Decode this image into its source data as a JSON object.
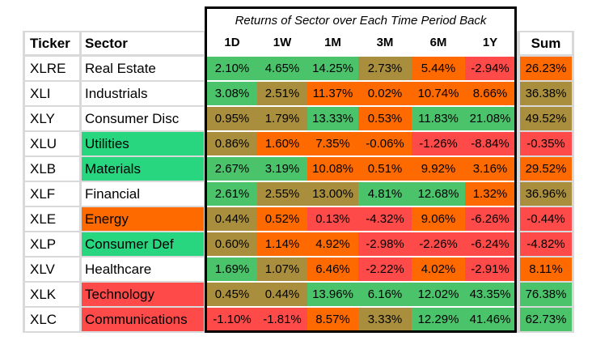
{
  "title": "Returns of Sector over Each Time Period Back",
  "headers": {
    "ticker": "Ticker",
    "sector": "Sector",
    "sum": "Sum"
  },
  "periods": [
    "1D",
    "1W",
    "1M",
    "3M",
    "6M",
    "1Y"
  ],
  "colors": {
    "green": "#4bc36b",
    "olive": "#a98f3d",
    "orange": "#ff6a00",
    "red": "#ff4a4a",
    "bright_green": "#27d67f"
  },
  "rows": [
    {
      "ticker": "XLRE",
      "sector": "Real Estate",
      "sector_color": "#ffffff",
      "values": [
        "2.10%",
        "4.65%",
        "14.25%",
        "2.73%",
        "5.44%",
        "-2.94%"
      ],
      "colors": [
        "#4bc36b",
        "#4bc36b",
        "#4bc36b",
        "#a98f3d",
        "#ff6a00",
        "#ff4a4a"
      ],
      "sum": "26.23%",
      "sum_color": "#ff6a00"
    },
    {
      "ticker": "XLI",
      "sector": "Industrials",
      "sector_color": "#ffffff",
      "values": [
        "3.08%",
        "2.51%",
        "11.37%",
        "0.02%",
        "10.74%",
        "8.66%"
      ],
      "colors": [
        "#4bc36b",
        "#a98f3d",
        "#ff6a00",
        "#ff6a00",
        "#ff6a00",
        "#ff6a00"
      ],
      "sum": "36.38%",
      "sum_color": "#a98f3d"
    },
    {
      "ticker": "XLY",
      "sector": "Consumer Disc",
      "sector_color": "#ffffff",
      "values": [
        "0.95%",
        "1.79%",
        "13.33%",
        "0.53%",
        "11.83%",
        "21.08%"
      ],
      "colors": [
        "#a98f3d",
        "#a98f3d",
        "#4bc36b",
        "#ff6a00",
        "#4bc36b",
        "#4bc36b"
      ],
      "sum": "49.52%",
      "sum_color": "#a98f3d"
    },
    {
      "ticker": "XLU",
      "sector": "Utilities",
      "sector_color": "#27d67f",
      "values": [
        "0.86%",
        "1.60%",
        "7.35%",
        "-0.06%",
        "-1.26%",
        "-8.84%"
      ],
      "colors": [
        "#a98f3d",
        "#ff6a00",
        "#ff6a00",
        "#ff6a00",
        "#ff4a4a",
        "#ff4a4a"
      ],
      "sum": "-0.35%",
      "sum_color": "#ff4a4a"
    },
    {
      "ticker": "XLB",
      "sector": "Materials",
      "sector_color": "#27d67f",
      "values": [
        "2.67%",
        "3.19%",
        "10.08%",
        "0.51%",
        "9.92%",
        "3.16%"
      ],
      "colors": [
        "#4bc36b",
        "#4bc36b",
        "#ff6a00",
        "#ff6a00",
        "#ff6a00",
        "#ff6a00"
      ],
      "sum": "29.52%",
      "sum_color": "#ff6a00"
    },
    {
      "ticker": "XLF",
      "sector": "Financial",
      "sector_color": "#ffffff",
      "values": [
        "2.61%",
        "2.55%",
        "13.00%",
        "4.81%",
        "12.68%",
        "1.32%"
      ],
      "colors": [
        "#4bc36b",
        "#a98f3d",
        "#a98f3d",
        "#4bc36b",
        "#4bc36b",
        "#ff6a00"
      ],
      "sum": "36.96%",
      "sum_color": "#a98f3d"
    },
    {
      "ticker": "XLE",
      "sector": "Energy",
      "sector_color": "#ff6a00",
      "values": [
        "0.44%",
        "0.52%",
        "0.13%",
        "-4.32%",
        "9.06%",
        "-6.26%"
      ],
      "colors": [
        "#a98f3d",
        "#ff6a00",
        "#ff4a4a",
        "#ff4a4a",
        "#ff6a00",
        "#ff4a4a"
      ],
      "sum": "-0.44%",
      "sum_color": "#ff4a4a"
    },
    {
      "ticker": "XLP",
      "sector": "Consumer Def",
      "sector_color": "#27d67f",
      "values": [
        "0.60%",
        "1.14%",
        "4.92%",
        "-2.98%",
        "-2.26%",
        "-6.24%"
      ],
      "colors": [
        "#a98f3d",
        "#ff6a00",
        "#ff6a00",
        "#ff4a4a",
        "#ff4a4a",
        "#ff4a4a"
      ],
      "sum": "-4.82%",
      "sum_color": "#ff4a4a"
    },
    {
      "ticker": "XLV",
      "sector": "Healthcare",
      "sector_color": "#ffffff",
      "values": [
        "1.69%",
        "1.07%",
        "6.46%",
        "-2.22%",
        "4.02%",
        "-2.91%"
      ],
      "colors": [
        "#4bc36b",
        "#a98f3d",
        "#ff6a00",
        "#ff4a4a",
        "#ff6a00",
        "#ff4a4a"
      ],
      "sum": "8.11%",
      "sum_color": "#ff6a00"
    },
    {
      "ticker": "XLK",
      "sector": "Technology",
      "sector_color": "#ff4a4a",
      "values": [
        "0.45%",
        "0.44%",
        "13.96%",
        "6.16%",
        "12.02%",
        "43.35%"
      ],
      "colors": [
        "#a98f3d",
        "#a98f3d",
        "#4bc36b",
        "#4bc36b",
        "#4bc36b",
        "#4bc36b"
      ],
      "sum": "76.38%",
      "sum_color": "#4bc36b"
    },
    {
      "ticker": "XLC",
      "sector": "Communications",
      "sector_color": "#ff4a4a",
      "values": [
        "-1.10%",
        "-1.81%",
        "8.57%",
        "3.33%",
        "12.29%",
        "41.46%"
      ],
      "colors": [
        "#ff4a4a",
        "#ff4a4a",
        "#ff6a00",
        "#a98f3d",
        "#4bc36b",
        "#4bc36b"
      ],
      "sum": "62.73%",
      "sum_color": "#4bc36b"
    }
  ]
}
